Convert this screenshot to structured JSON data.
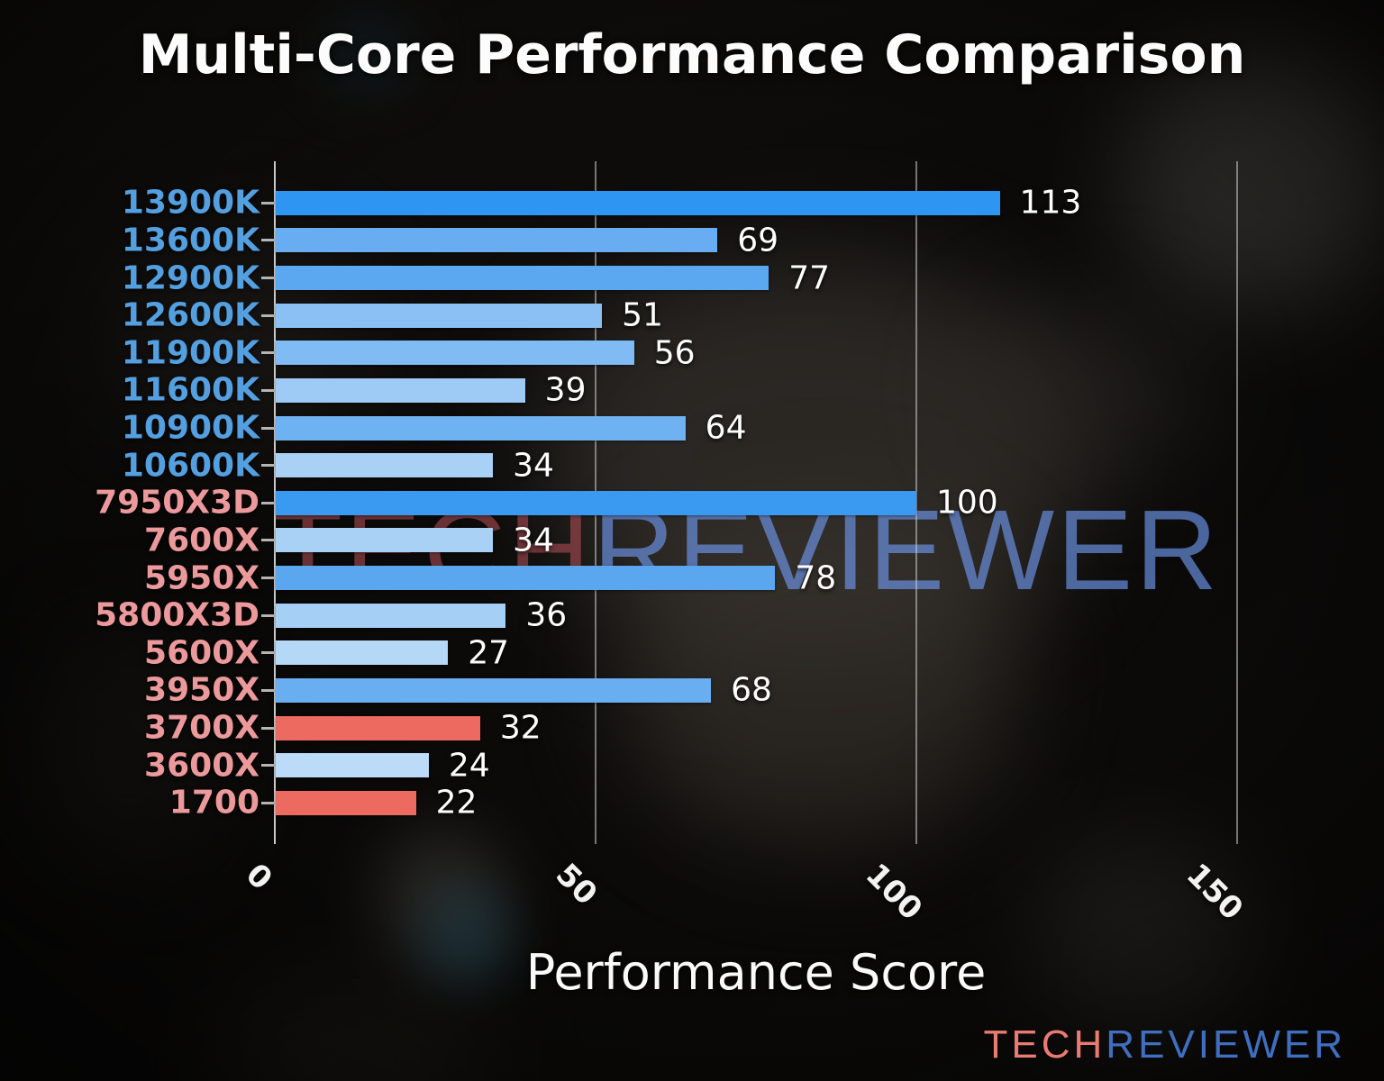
{
  "title": "Multi-Core Performance Comparison",
  "axis": {
    "xlabel": "Performance Score",
    "xticks_labels": [
      "0",
      "50",
      "100",
      "150"
    ]
  },
  "watermark": {
    "tech": "TECH",
    "reviewer": "REVIEWER"
  },
  "logo": {
    "tech": "TECH",
    "reviewer": "REVIEWER"
  },
  "colors": {
    "intel_label": "#539fe0",
    "amd_label": "#ec999b",
    "value_label": "#ffffff",
    "highlight_red_bar": "#ed6a60",
    "strongest_blue_bar": "#2e95f2",
    "logo_tech": "#e87b72",
    "logo_reviewer": "#3e6fc0",
    "gridline": "#c9c9c9"
  },
  "chart_data": {
    "type": "bar",
    "orientation": "horizontal",
    "title": "Multi-Core Performance Comparison",
    "xlabel": "Performance Score",
    "ylabel": "",
    "xlim": [
      0,
      150
    ],
    "xticks": [
      0,
      50,
      100,
      150
    ],
    "grid": true,
    "legend": "none",
    "categories": [
      "13900K",
      "13600K",
      "12900K",
      "12600K",
      "11900K",
      "11600K",
      "10900K",
      "10600K",
      "7950X3D",
      "7600X",
      "5950X",
      "5800X3D",
      "5600X",
      "3950X",
      "3700X",
      "3600X",
      "1700"
    ],
    "values": [
      113,
      69,
      77,
      51,
      56,
      39,
      64,
      34,
      100,
      34,
      78,
      36,
      27,
      68,
      32,
      24,
      22
    ],
    "bars": [
      {
        "label": "13900K",
        "value": 113,
        "bar_color": "#2e95f2",
        "label_color": "#539fe0",
        "brand": "intel"
      },
      {
        "label": "13600K",
        "value": 69,
        "bar_color": "#68adf1",
        "label_color": "#539fe0",
        "brand": "intel"
      },
      {
        "label": "12900K",
        "value": 77,
        "bar_color": "#5ca8f0",
        "label_color": "#539fe0",
        "brand": "intel"
      },
      {
        "label": "12600K",
        "value": 51,
        "bar_color": "#8ac0f4",
        "label_color": "#539fe0",
        "brand": "intel"
      },
      {
        "label": "11900K",
        "value": 56,
        "bar_color": "#80bbf3",
        "label_color": "#539fe0",
        "brand": "intel"
      },
      {
        "label": "11600K",
        "value": 39,
        "bar_color": "#9dcbf5",
        "label_color": "#539fe0",
        "brand": "intel"
      },
      {
        "label": "10900K",
        "value": 64,
        "bar_color": "#6fb2f1",
        "label_color": "#539fe0",
        "brand": "intel"
      },
      {
        "label": "10600K",
        "value": 34,
        "bar_color": "#a9d1f6",
        "label_color": "#539fe0",
        "brand": "intel"
      },
      {
        "label": "7950X3D",
        "value": 100,
        "bar_color": "#3a99f0",
        "label_color": "#ec999b",
        "brand": "amd"
      },
      {
        "label": "7600X",
        "value": 34,
        "bar_color": "#a9d1f6",
        "label_color": "#ec999b",
        "brand": "amd"
      },
      {
        "label": "5950X",
        "value": 78,
        "bar_color": "#5aa6ef",
        "label_color": "#ec999b",
        "brand": "amd"
      },
      {
        "label": "5800X3D",
        "value": 36,
        "bar_color": "#a5cff5",
        "label_color": "#ec999b",
        "brand": "amd"
      },
      {
        "label": "5600X",
        "value": 27,
        "bar_color": "#b6d8f7",
        "label_color": "#ec999b",
        "brand": "amd"
      },
      {
        "label": "3950X",
        "value": 68,
        "bar_color": "#69aef1",
        "label_color": "#ec999b",
        "brand": "amd"
      },
      {
        "label": "3700X",
        "value": 32,
        "bar_color": "#ed6a60",
        "label_color": "#ec999b",
        "brand": "amd"
      },
      {
        "label": "3600X",
        "value": 24,
        "bar_color": "#bcdbf8",
        "label_color": "#ec999b",
        "brand": "amd"
      },
      {
        "label": "1700",
        "value": 22,
        "bar_color": "#ed6a60",
        "label_color": "#ec999b",
        "brand": "amd"
      }
    ]
  }
}
